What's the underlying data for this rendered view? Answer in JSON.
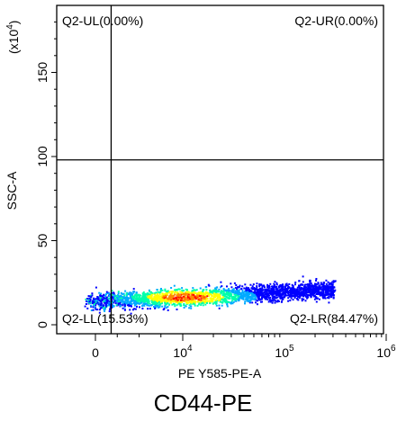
{
  "chart_data": {
    "type": "scatter",
    "subtype": "flow-cytometry-density-dot-plot",
    "xlabel": "PE Y585-PE-A",
    "ylabel": "SSC-A",
    "y_multiplier": "(x10",
    "y_multiplier_exp": "4",
    "x_scale": "biexponential",
    "y_scale": "linear",
    "ylim": [
      0,
      190
    ],
    "y_ticks": [
      0,
      50,
      100,
      150
    ],
    "y_tick_labels": [
      "0",
      "50",
      "100",
      "150"
    ],
    "x_ticks": [
      0,
      10000,
      100000,
      1000000
    ],
    "x_tick_labels": [
      {
        "base": "0",
        "exp": ""
      },
      {
        "base": "10",
        "exp": "4"
      },
      {
        "base": "10",
        "exp": "5"
      },
      {
        "base": "10",
        "exp": "6"
      }
    ],
    "gate": {
      "x": 1800,
      "y": 98
    },
    "quadrants": [
      {
        "id": "Q2-UL",
        "label": "Q2-UL(0.00%)",
        "percent": 0.0
      },
      {
        "id": "Q2-UR",
        "label": "Q2-UR(0.00%)",
        "percent": 0.0
      },
      {
        "id": "Q2-LL",
        "label": "Q2-LL(15.53%)",
        "percent": 15.53
      },
      {
        "id": "Q2-LR",
        "label": "Q2-LR(84.47%)",
        "percent": 84.47
      }
    ],
    "grid": false,
    "colors": [
      "#0000ff",
      "#00aaff",
      "#00ffaa",
      "#ffff00",
      "#ff8800",
      "#ff0000"
    ]
  },
  "caption": "CD44-PE"
}
